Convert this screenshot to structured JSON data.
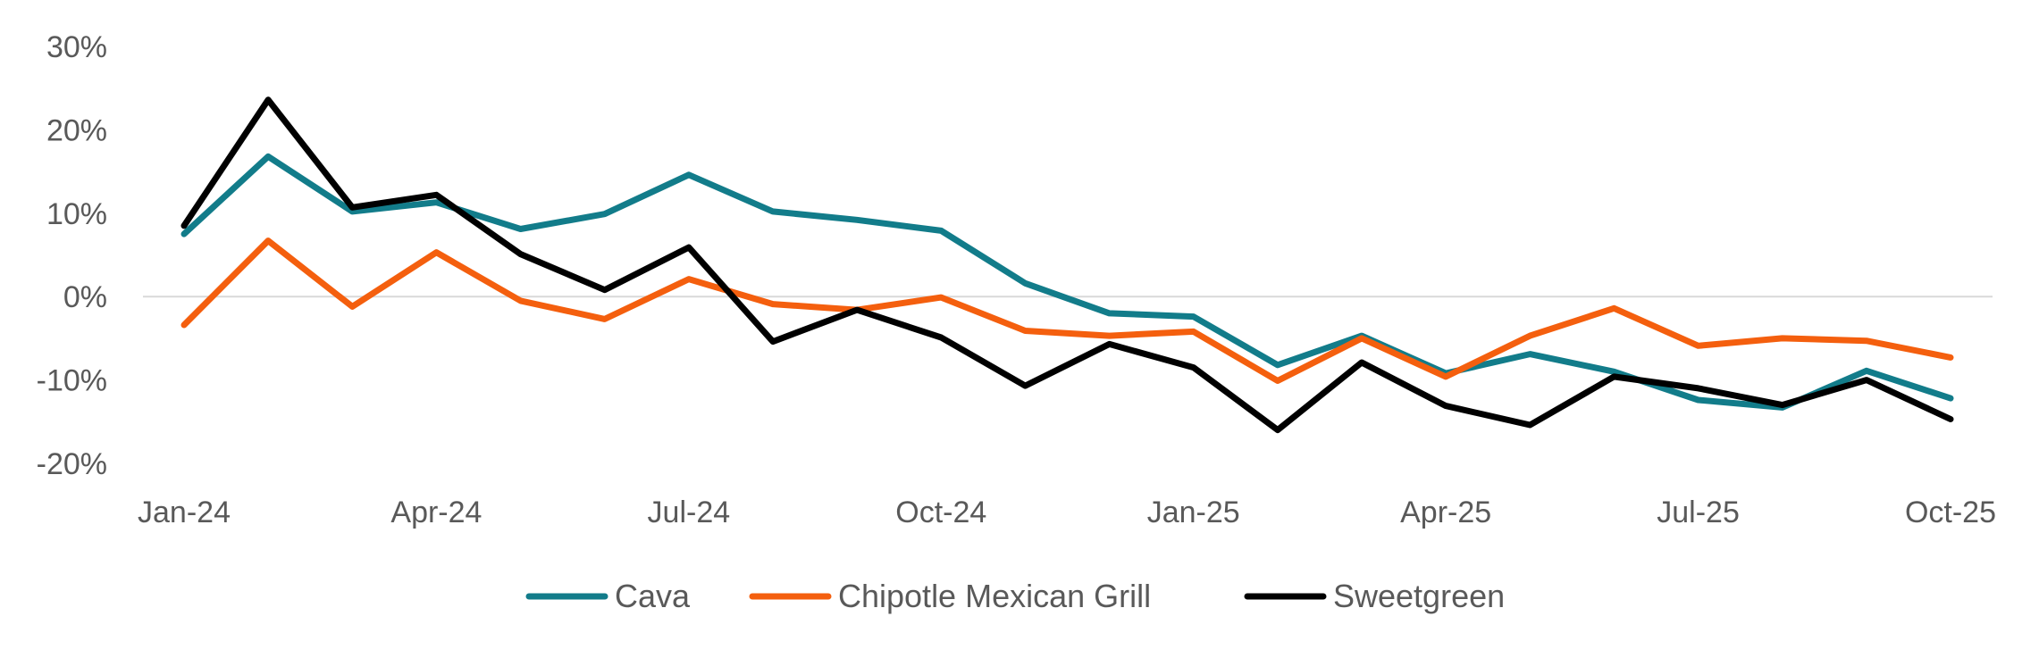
{
  "chart_data": {
    "type": "line",
    "title": "",
    "xlabel": "",
    "ylabel": "",
    "ylim": [
      -20,
      30
    ],
    "yticks": [
      30,
      20,
      10,
      0,
      -10,
      -20
    ],
    "ytick_labels": [
      "30%",
      "20%",
      "10%",
      "0%",
      "-10%",
      "-20%"
    ],
    "x_tick_labels": [
      "Jan-24",
      "Apr-24",
      "Jul-24",
      "Oct-24",
      "Jan-25",
      "Apr-25",
      "Jul-25",
      "Oct-25"
    ],
    "x": [
      "Jan-24",
      "Feb-24",
      "Mar-24",
      "Apr-24",
      "May-24",
      "Jun-24",
      "Jul-24",
      "Aug-24",
      "Sep-24",
      "Oct-24",
      "Nov-24",
      "Dec-24",
      "Jan-25",
      "Feb-25",
      "Mar-25",
      "Apr-25",
      "May-25",
      "Jun-25",
      "Jul-25",
      "Aug-25",
      "Sep-25",
      "Oct-25"
    ],
    "legend_position": "bottom",
    "series": [
      {
        "name": "Cava",
        "color": "#127C8A",
        "values": [
          7.5,
          16.8,
          10.2,
          11.3,
          8.1,
          9.9,
          14.6,
          10.2,
          9.2,
          7.9,
          1.6,
          -2.0,
          -2.4,
          -8.2,
          -4.7,
          -9.2,
          -6.9,
          -9.0,
          -12.4,
          -13.3,
          -8.9,
          -12.2
        ]
      },
      {
        "name": "Chipotle Mexican Grill",
        "color": "#F45F0E",
        "values": [
          -3.4,
          6.7,
          -1.2,
          5.3,
          -0.5,
          -2.7,
          2.1,
          -0.9,
          -1.6,
          -0.1,
          -4.1,
          -4.7,
          -4.2,
          -10.1,
          -5.0,
          -9.6,
          -4.7,
          -1.4,
          -5.9,
          -5.0,
          -5.3,
          -7.3
        ]
      },
      {
        "name": "Sweetgreen",
        "color": "#000000",
        "values": [
          8.5,
          23.6,
          10.7,
          12.2,
          5.1,
          0.8,
          5.9,
          -5.4,
          -1.6,
          -4.9,
          -10.7,
          -5.7,
          -8.5,
          -16.0,
          -7.9,
          -13.1,
          -15.4,
          -9.6,
          -11.0,
          -13.0,
          -10.0,
          -14.7
        ]
      }
    ]
  }
}
